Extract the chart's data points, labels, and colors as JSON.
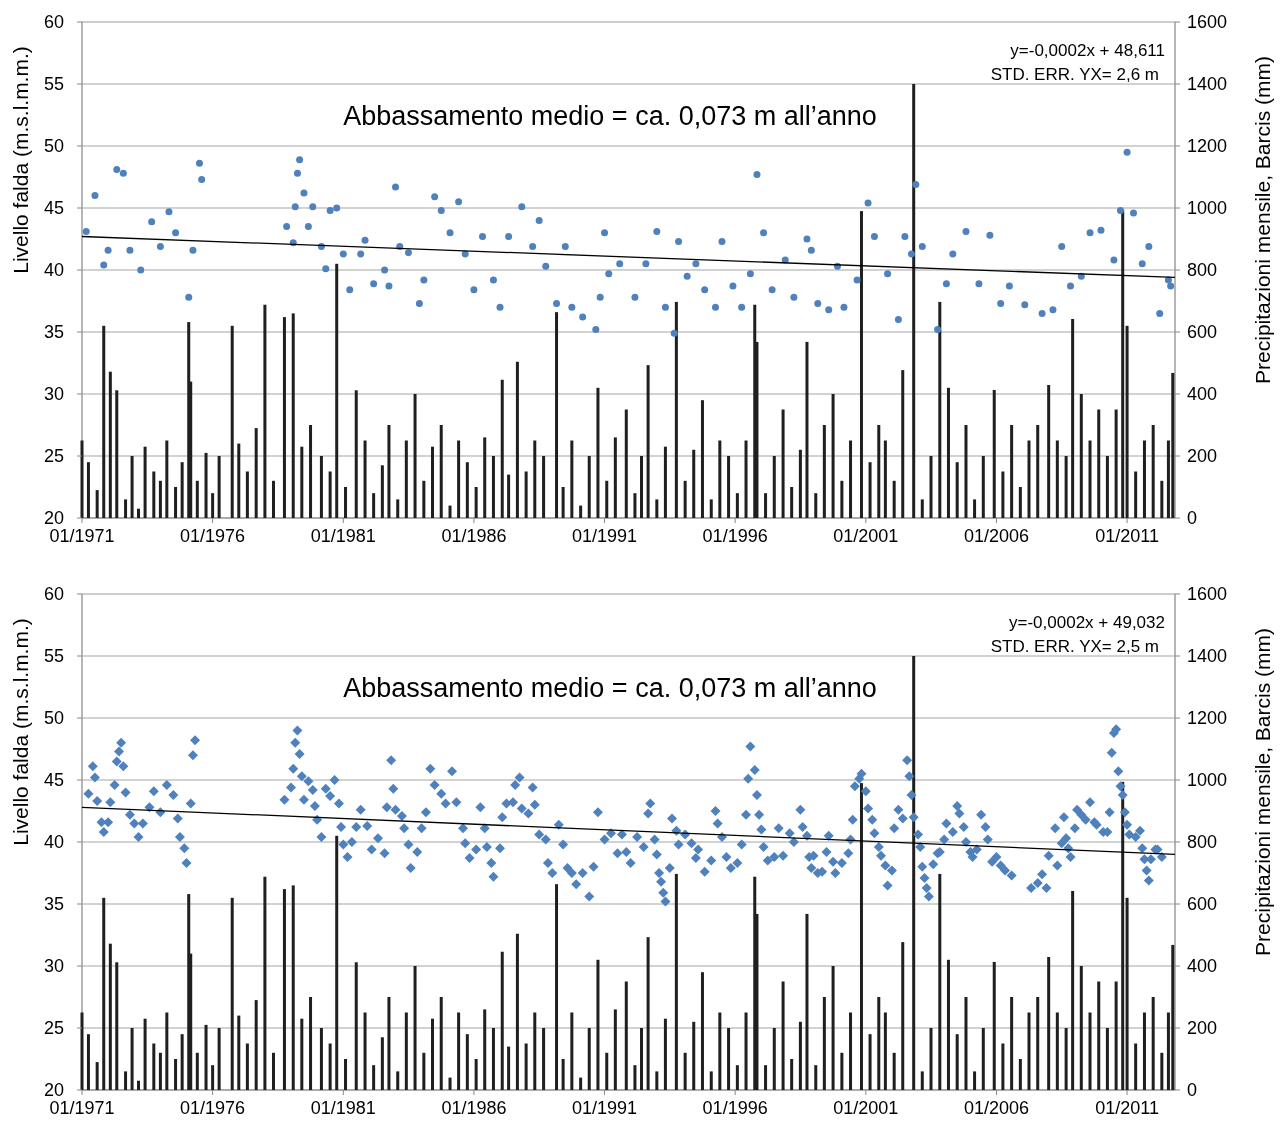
{
  "chart_data": [
    {
      "type": "scatter",
      "ylabel": "Livello falda (m.s.l.m.m.)",
      "y2label": "Precipitazioni mensile, Barcis (mm)",
      "annotations": [
        "y=-0,0002x + 48,611",
        "STD. ERR. YX= 2,6 m",
        "Abbassamento medio = ca. 0,073 m all’anno"
      ],
      "xlim": [
        "1971-01",
        "2012-11"
      ],
      "xticks": [
        {
          "value": "1971-01",
          "label": "01/1971"
        },
        {
          "value": "1976-01",
          "label": "01/1976"
        },
        {
          "value": "1981-01",
          "label": "01/1981"
        },
        {
          "value": "1986-01",
          "label": "01/1986"
        },
        {
          "value": "1991-01",
          "label": "01/1991"
        },
        {
          "value": "1996-01",
          "label": "01/1996"
        },
        {
          "value": "2001-01",
          "label": "01/2001"
        },
        {
          "value": "2006-01",
          "label": "01/2006"
        },
        {
          "value": "2011-01",
          "label": "01/2011"
        }
      ],
      "ylim": [
        20,
        60
      ],
      "yticks": [
        20,
        25,
        30,
        35,
        40,
        45,
        50,
        55,
        60
      ],
      "y2lim": [
        0,
        1600
      ],
      "y2ticks": [
        0,
        200,
        400,
        600,
        800,
        1000,
        1200,
        1400,
        1600
      ],
      "grid": "y",
      "series": [
        {
          "type": "bar",
          "axis": "y2",
          "color": "#1f1f1f",
          "x": [
            "1971-01",
            "1971-04",
            "1971-08",
            "1971-11",
            "1972-02",
            "1972-05",
            "1972-09",
            "1972-12",
            "1973-03",
            "1973-06",
            "1973-10",
            "1974-01",
            "1974-04",
            "1974-08",
            "1974-11",
            "1975-02",
            "1975-03",
            "1975-06",
            "1975-10",
            "1976-01",
            "1976-04",
            "1976-10",
            "1977-01",
            "1977-05",
            "1977-09",
            "1978-01",
            "1978-05",
            "1978-10",
            "1979-02",
            "1979-06",
            "1979-10",
            "1980-03",
            "1980-07",
            "1980-10",
            "1981-02",
            "1981-07",
            "1981-11",
            "1982-03",
            "1982-07",
            "1982-10",
            "1983-02",
            "1983-06",
            "1983-10",
            "1984-02",
            "1984-06",
            "1984-10",
            "1985-02",
            "1985-06",
            "1985-10",
            "1986-02",
            "1986-06",
            "1986-10",
            "1987-02",
            "1987-05",
            "1987-09",
            "1988-01",
            "1988-05",
            "1988-09",
            "1989-03",
            "1989-06",
            "1989-10",
            "1990-02",
            "1990-06",
            "1990-10",
            "1991-02",
            "1991-06",
            "1991-11",
            "1992-03",
            "1992-06",
            "1992-09",
            "1993-01",
            "1993-05",
            "1993-10",
            "1994-02",
            "1994-06",
            "1994-10",
            "1995-02",
            "1995-06",
            "1995-10",
            "1996-02",
            "1996-06",
            "1996-10",
            "1996-11",
            "1997-03",
            "1997-07",
            "1997-11",
            "1998-03",
            "1998-07",
            "1998-10",
            "1999-02",
            "1999-06",
            "1999-10",
            "2000-02",
            "2000-06",
            "2000-11",
            "2001-03",
            "2001-07",
            "2001-10",
            "2002-02",
            "2002-06",
            "2002-11",
            "2003-03",
            "2003-07",
            "2003-11",
            "2004-03",
            "2004-07",
            "2004-11",
            "2005-03",
            "2005-07",
            "2005-12",
            "2006-04",
            "2006-08",
            "2006-12",
            "2007-04",
            "2007-08",
            "2008-01",
            "2008-05",
            "2008-09",
            "2008-12",
            "2009-04",
            "2009-08",
            "2009-12",
            "2010-04",
            "2010-08",
            "2010-11",
            "2011-01",
            "2011-05",
            "2011-09",
            "2012-01",
            "2012-05",
            "2012-08",
            "2012-10"
          ],
          "values": [
            250,
            180,
            90,
            620,
            472,
            412,
            60,
            200,
            30,
            230,
            150,
            120,
            250,
            100,
            180,
            632,
            440,
            120,
            210,
            80,
            200,
            620,
            240,
            150,
            290,
            688,
            120,
            648,
            660,
            230,
            300,
            200,
            150,
            820,
            100,
            412,
            250,
            80,
            170,
            300,
            60,
            250,
            400,
            120,
            230,
            300,
            40,
            250,
            180,
            100,
            260,
            200,
            446,
            140,
            504,
            150,
            250,
            200,
            664,
            100,
            250,
            40,
            200,
            420,
            120,
            260,
            350,
            80,
            200,
            493,
            60,
            230,
            697,
            120,
            220,
            380,
            60,
            250,
            200,
            80,
            250,
            688,
            568,
            80,
            200,
            350,
            100,
            220,
            568,
            80,
            300,
            400,
            120,
            250,
            990,
            180,
            300,
            250,
            120,
            477,
            1400,
            60,
            200,
            697,
            420,
            180,
            300,
            60,
            200,
            413,
            150,
            300,
            100,
            250,
            300,
            429,
            250,
            200,
            642,
            400,
            250,
            350,
            200,
            350,
            994,
            620,
            150,
            250,
            300,
            120,
            250,
            468
          ]
        },
        {
          "marker": "circle",
          "color": "#4f81bd",
          "x": [
            "1971-03",
            "1971-07",
            "1971-11",
            "1972-01",
            "1972-05",
            "1972-08",
            "1972-11",
            "1973-04",
            "1973-09",
            "1974-01",
            "1974-05",
            "1974-08",
            "1975-02",
            "1975-04",
            "1975-07",
            "1975-08",
            "1978-11",
            "1979-02",
            "1979-03",
            "1979-04",
            "1979-05",
            "1979-07",
            "1979-09",
            "1979-11",
            "1980-03",
            "1980-05",
            "1980-07",
            "1980-10",
            "1981-01",
            "1981-04",
            "1981-09",
            "1981-11",
            "1982-03",
            "1982-08",
            "1982-10",
            "1983-01",
            "1983-03",
            "1983-07",
            "1983-12",
            "1984-02",
            "1984-07",
            "1984-10",
            "1985-02",
            "1985-06",
            "1985-09",
            "1986-01",
            "1986-05",
            "1986-10",
            "1987-01",
            "1987-05",
            "1987-11",
            "1988-04",
            "1988-07",
            "1988-10",
            "1989-03",
            "1989-07",
            "1989-10",
            "1990-03",
            "1990-09",
            "1990-11",
            "1991-01",
            "1991-03",
            "1991-08",
            "1992-03",
            "1992-08",
            "1993-01",
            "1993-05",
            "1993-09",
            "1993-11",
            "1994-03",
            "1994-07",
            "1994-11",
            "1995-04",
            "1995-07",
            "1995-12",
            "1996-04",
            "1996-08",
            "1996-11",
            "1997-02",
            "1997-06",
            "1997-12",
            "1998-04",
            "1998-10",
            "1998-12",
            "1999-03",
            "1999-08",
            "1999-12",
            "2000-03",
            "2000-09",
            "2001-02",
            "2001-05",
            "2001-11",
            "2002-04",
            "2002-07",
            "2002-10",
            "2002-12",
            "2003-03",
            "2003-10",
            "2004-02",
            "2004-05",
            "2004-11",
            "2005-05",
            "2005-10",
            "2006-03",
            "2006-07",
            "2007-02",
            "2007-10",
            "2008-03",
            "2008-07",
            "2008-11",
            "2009-04",
            "2009-08",
            "2010-01",
            "2010-07",
            "2010-10",
            "2011-01",
            "2011-04",
            "2011-08",
            "2011-11",
            "2012-04",
            "2012-08",
            "2012-09"
          ],
          "values": [
            43.1,
            46.0,
            40.4,
            41.6,
            48.1,
            47.8,
            41.6,
            40.0,
            43.9,
            41.9,
            44.7,
            43.0,
            37.8,
            41.6,
            48.6,
            47.3,
            43.5,
            42.2,
            45.1,
            47.8,
            48.9,
            46.2,
            43.5,
            45.1,
            41.9,
            40.1,
            44.8,
            45.0,
            41.3,
            38.4,
            41.3,
            42.4,
            38.9,
            40.0,
            38.7,
            46.7,
            41.9,
            41.4,
            37.3,
            39.2,
            45.9,
            44.8,
            43.0,
            45.5,
            41.3,
            38.4,
            42.7,
            39.2,
            37.0,
            42.7,
            45.1,
            41.9,
            44.0,
            40.3,
            37.3,
            41.9,
            37.0,
            36.2,
            35.2,
            37.8,
            43.0,
            39.7,
            40.5,
            37.8,
            40.5,
            43.1,
            37.0,
            34.9,
            42.3,
            39.5,
            40.5,
            38.4,
            37.0,
            42.3,
            38.7,
            37.0,
            39.7,
            47.7,
            43.0,
            38.4,
            40.8,
            37.8,
            42.5,
            41.6,
            37.3,
            36.8,
            40.3,
            37.0,
            39.2,
            45.4,
            42.7,
            39.7,
            36.0,
            42.7,
            41.3,
            46.9,
            41.9,
            35.2,
            38.9,
            41.3,
            43.1,
            38.9,
            42.8,
            37.3,
            38.7,
            37.2,
            36.5,
            36.8,
            41.9,
            38.7,
            39.5,
            43.0,
            43.2,
            40.8,
            44.8,
            49.5,
            44.6,
            40.5,
            41.9,
            36.5,
            39.2,
            38.7
          ]
        },
        {
          "type": "line",
          "line_style": "solid",
          "color": "#000000",
          "x": [
            "1971-01",
            "2012-11"
          ],
          "values": [
            42.7,
            39.4
          ]
        }
      ]
    },
    {
      "type": "scatter",
      "ylabel": "Livello falda (m.s.l.m.m.)",
      "y2label": "Precipitazioni mensile, Barcis (mm)",
      "annotations": [
        "y=-0,0002x + 49,032",
        "STD. ERR. YX= 2,5 m",
        "Abbassamento medio = ca. 0,073 m all’anno"
      ],
      "xlim": [
        "1971-01",
        "2012-11"
      ],
      "xticks": [
        {
          "value": "1971-01",
          "label": "01/1971"
        },
        {
          "value": "1976-01",
          "label": "01/1976"
        },
        {
          "value": "1981-01",
          "label": "01/1981"
        },
        {
          "value": "1986-01",
          "label": "01/1986"
        },
        {
          "value": "1991-01",
          "label": "01/1991"
        },
        {
          "value": "1996-01",
          "label": "01/1996"
        },
        {
          "value": "2001-01",
          "label": "01/2001"
        },
        {
          "value": "2006-01",
          "label": "01/2006"
        },
        {
          "value": "2011-01",
          "label": "01/2011"
        }
      ],
      "ylim": [
        20,
        60
      ],
      "yticks": [
        20,
        25,
        30,
        35,
        40,
        45,
        50,
        55,
        60
      ],
      "y2lim": [
        0,
        1600
      ],
      "y2ticks": [
        0,
        200,
        400,
        600,
        800,
        1000,
        1200,
        1400,
        1600
      ],
      "grid": "y",
      "series": [
        {
          "type": "bar",
          "axis": "y2",
          "color": "#1f1f1f",
          "x": [
            "1971-01",
            "1971-04",
            "1971-08",
            "1971-11",
            "1972-02",
            "1972-05",
            "1972-09",
            "1972-12",
            "1973-03",
            "1973-06",
            "1973-10",
            "1974-01",
            "1974-04",
            "1974-08",
            "1974-11",
            "1975-02",
            "1975-03",
            "1975-06",
            "1975-10",
            "1976-01",
            "1976-04",
            "1976-10",
            "1977-01",
            "1977-05",
            "1977-09",
            "1978-01",
            "1978-05",
            "1978-10",
            "1979-02",
            "1979-06",
            "1979-10",
            "1980-03",
            "1980-07",
            "1980-10",
            "1981-02",
            "1981-07",
            "1981-11",
            "1982-03",
            "1982-07",
            "1982-10",
            "1983-02",
            "1983-06",
            "1983-10",
            "1984-02",
            "1984-06",
            "1984-10",
            "1985-02",
            "1985-06",
            "1985-10",
            "1986-02",
            "1986-06",
            "1986-10",
            "1987-02",
            "1987-05",
            "1987-09",
            "1988-01",
            "1988-05",
            "1988-09",
            "1989-03",
            "1989-06",
            "1989-10",
            "1990-02",
            "1990-06",
            "1990-10",
            "1991-02",
            "1991-06",
            "1991-11",
            "1992-03",
            "1992-06",
            "1992-09",
            "1993-01",
            "1993-05",
            "1993-10",
            "1994-02",
            "1994-06",
            "1994-10",
            "1995-02",
            "1995-06",
            "1995-10",
            "1996-02",
            "1996-06",
            "1996-10",
            "1996-11",
            "1997-03",
            "1997-07",
            "1997-11",
            "1998-03",
            "1998-07",
            "1998-10",
            "1999-02",
            "1999-06",
            "1999-10",
            "2000-02",
            "2000-06",
            "2000-11",
            "2001-03",
            "2001-07",
            "2001-10",
            "2002-02",
            "2002-06",
            "2002-11",
            "2003-03",
            "2003-07",
            "2003-11",
            "2004-03",
            "2004-07",
            "2004-11",
            "2005-03",
            "2005-07",
            "2005-12",
            "2006-04",
            "2006-08",
            "2006-12",
            "2007-04",
            "2007-08",
            "2008-01",
            "2008-05",
            "2008-09",
            "2008-12",
            "2009-04",
            "2009-08",
            "2009-12",
            "2010-04",
            "2010-08",
            "2010-11",
            "2011-01",
            "2011-05",
            "2011-09",
            "2012-01",
            "2012-05",
            "2012-08",
            "2012-10"
          ],
          "values": [
            250,
            180,
            90,
            620,
            472,
            412,
            60,
            200,
            30,
            230,
            150,
            120,
            250,
            100,
            180,
            632,
            440,
            120,
            210,
            80,
            200,
            620,
            240,
            150,
            290,
            688,
            120,
            648,
            660,
            230,
            300,
            200,
            150,
            820,
            100,
            412,
            250,
            80,
            170,
            300,
            60,
            250,
            400,
            120,
            230,
            300,
            40,
            250,
            180,
            100,
            260,
            200,
            446,
            140,
            504,
            150,
            250,
            200,
            664,
            100,
            250,
            40,
            200,
            420,
            120,
            260,
            350,
            80,
            200,
            493,
            60,
            230,
            697,
            120,
            220,
            380,
            60,
            250,
            200,
            80,
            250,
            688,
            568,
            80,
            200,
            350,
            100,
            220,
            568,
            80,
            300,
            400,
            120,
            250,
            990,
            180,
            300,
            250,
            120,
            477,
            1400,
            60,
            200,
            697,
            420,
            180,
            300,
            60,
            200,
            413,
            150,
            300,
            100,
            250,
            300,
            429,
            250,
            200,
            642,
            400,
            250,
            350,
            200,
            350,
            994,
            620,
            150,
            250,
            300,
            120,
            250,
            468
          ]
        },
        {
          "marker": "diamond",
          "color": "#4f81bd",
          "x": [
            "1971-04",
            "1971-06",
            "1971-07",
            "1971-08",
            "1971-10",
            "1971-11",
            "1972-01",
            "1972-02",
            "1972-04",
            "1972-05",
            "1972-06",
            "1972-07",
            "1972-08",
            "1972-09",
            "1972-11",
            "1973-01",
            "1973-03",
            "1973-05",
            "1973-08",
            "1973-10",
            "1974-01",
            "1974-04",
            "1974-07",
            "1974-09",
            "1974-10",
            "1974-12",
            "1975-01",
            "1975-03",
            "1975-04",
            "1975-05",
            "1978-10",
            "1979-01",
            "1979-02",
            "1979-03",
            "1979-04",
            "1979-05",
            "1979-06",
            "1979-07",
            "1979-09",
            "1979-11",
            "1979-12",
            "1980-01",
            "1980-03",
            "1980-05",
            "1980-07",
            "1980-09",
            "1980-11",
            "1980-12",
            "1981-01",
            "1981-03",
            "1981-05",
            "1981-07",
            "1981-09",
            "1981-12",
            "1982-02",
            "1982-05",
            "1982-08",
            "1982-09",
            "1982-11",
            "1982-12",
            "1983-01",
            "1983-04",
            "1983-05",
            "1983-07",
            "1983-08",
            "1983-11",
            "1984-01",
            "1984-03",
            "1984-05",
            "1984-07",
            "1984-10",
            "1984-12",
            "1985-03",
            "1985-05",
            "1985-08",
            "1985-09",
            "1985-11",
            "1986-02",
            "1986-04",
            "1986-06",
            "1986-07",
            "1986-09",
            "1986-10",
            "1987-01",
            "1987-02",
            "1987-04",
            "1987-07",
            "1987-08",
            "1987-10",
            "1987-11",
            "1988-02",
            "1988-04",
            "1988-05",
            "1988-07",
            "1988-10",
            "1988-11",
            "1989-01",
            "1989-04",
            "1989-06",
            "1989-08",
            "1989-10",
            "1989-12",
            "1990-03",
            "1990-06",
            "1990-08",
            "1990-10",
            "1991-01",
            "1991-04",
            "1991-07",
            "1991-09",
            "1991-11",
            "1992-01",
            "1992-04",
            "1992-07",
            "1992-09",
            "1992-10",
            "1992-12",
            "1993-01",
            "1993-02",
            "1993-03",
            "1993-04",
            "1993-05",
            "1993-07",
            "1993-08",
            "1993-10",
            "1993-11",
            "1994-02",
            "1994-05",
            "1994-07",
            "1994-08",
            "1994-11",
            "1995-02",
            "1995-04",
            "1995-05",
            "1995-07",
            "1995-09",
            "1995-11",
            "1996-02",
            "1996-04",
            "1996-06",
            "1996-07",
            "1996-08",
            "1996-10",
            "1996-11",
            "1996-12",
            "1997-01",
            "1997-02",
            "1997-04",
            "1997-07",
            "1997-09",
            "1997-11",
            "1998-02",
            "1998-04",
            "1998-07",
            "1998-08",
            "1998-10",
            "1998-11",
            "1998-12",
            "1999-01",
            "1999-03",
            "1999-05",
            "1999-07",
            "1999-08",
            "1999-10",
            "1999-11",
            "2000-02",
            "2000-05",
            "2000-06",
            "2000-07",
            "2000-08",
            "2000-10",
            "2000-11",
            "2001-01",
            "2001-02",
            "2001-04",
            "2001-05",
            "2001-07",
            "2001-08",
            "2001-10",
            "2001-11",
            "2002-01",
            "2002-02",
            "2002-04",
            "2002-06",
            "2002-08",
            "2002-09",
            "2002-10",
            "2002-11",
            "2003-01",
            "2003-02",
            "2003-03",
            "2003-04",
            "2003-05",
            "2003-06",
            "2003-08",
            "2003-10",
            "2003-11",
            "2004-01",
            "2004-02",
            "2004-05",
            "2004-07",
            "2004-08",
            "2004-10",
            "2004-11",
            "2005-01",
            "2005-02",
            "2005-04",
            "2005-06",
            "2005-08",
            "2005-09",
            "2005-11",
            "2006-01",
            "2006-03",
            "2006-05",
            "2006-08",
            "2007-05",
            "2007-08",
            "2007-10",
            "2007-12",
            "2008-01",
            "2008-04",
            "2008-05",
            "2008-07",
            "2008-08",
            "2008-09",
            "2008-10",
            "2008-11",
            "2009-01",
            "2009-02",
            "2009-04",
            "2009-06",
            "2009-08",
            "2009-10",
            "2009-11",
            "2010-02",
            "2010-04",
            "2010-05",
            "2010-06",
            "2010-07",
            "2010-08",
            "2010-09",
            "2010-10",
            "2010-11",
            "2010-12",
            "2011-01",
            "2011-02",
            "2011-05",
            "2011-07",
            "2011-08",
            "2011-09",
            "2011-10",
            "2011-11",
            "2011-12",
            "2012-02",
            "2012-03",
            "2012-05"
          ],
          "values": [
            43.9,
            46.1,
            45.2,
            43.3,
            41.6,
            40.8,
            41.6,
            43.2,
            44.6,
            46.5,
            47.3,
            48.0,
            46.1,
            44.0,
            42.2,
            41.5,
            40.4,
            41.5,
            42.8,
            44.1,
            42.4,
            44.6,
            43.8,
            41.9,
            40.4,
            39.5,
            38.3,
            43.1,
            47.0,
            48.2,
            43.4,
            44.4,
            45.9,
            48.0,
            49.0,
            47.1,
            45.3,
            43.4,
            44.9,
            44.2,
            42.9,
            41.8,
            40.4,
            44.3,
            43.7,
            45.0,
            43.1,
            41.2,
            39.8,
            38.8,
            40.0,
            41.2,
            42.6,
            41.3,
            39.4,
            40.3,
            39.1,
            42.8,
            46.6,
            44.3,
            42.6,
            42.1,
            41.1,
            39.8,
            37.9,
            39.2,
            41.1,
            42.4,
            45.9,
            44.6,
            43.9,
            43.1,
            45.7,
            43.2,
            41.1,
            39.9,
            38.7,
            39.4,
            42.8,
            41.1,
            39.6,
            38.3,
            37.2,
            39.5,
            42.0,
            43.1,
            43.2,
            44.6,
            45.2,
            42.7,
            42.3,
            44.4,
            43.0,
            40.6,
            40.2,
            38.3,
            37.5,
            41.4,
            39.8,
            37.9,
            37.5,
            36.6,
            37.5,
            35.6,
            38.0,
            42.4,
            40.2,
            40.7,
            39.1,
            40.6,
            39.2,
            38.3,
            40.4,
            39.6,
            42.3,
            43.1,
            40.2,
            39.0,
            37.5,
            36.8,
            35.9,
            35.2,
            37.9,
            41.9,
            40.9,
            39.8,
            40.6,
            39.9,
            38.7,
            39.4,
            37.6,
            38.5,
            42.5,
            41.5,
            40.4,
            38.8,
            37.9,
            38.3,
            39.8,
            42.2,
            45.1,
            47.7,
            45.8,
            43.8,
            42.2,
            41.0,
            39.6,
            38.5,
            38.8,
            41.1,
            38.9,
            40.7,
            40.0,
            42.6,
            41.2,
            40.5,
            38.8,
            37.9,
            38.9,
            37.5,
            37.6,
            39.2,
            40.5,
            38.4,
            37.5,
            38.3,
            39.1,
            40.2,
            41.8,
            44.5,
            45.1,
            45.5,
            44.1,
            42.7,
            41.8,
            40.7,
            39.6,
            38.9,
            38.1,
            36.5,
            37.7,
            41.1,
            42.6,
            41.9,
            46.6,
            45.3,
            43.8,
            42.0,
            40.6,
            39.6,
            38.0,
            37.1,
            36.3,
            35.6,
            38.2,
            39.1,
            39.2,
            40.2,
            41.5,
            40.8,
            42.9,
            42.3,
            41.2,
            40.0,
            39.2,
            38.8,
            39.4,
            42.2,
            41.2,
            40.2,
            38.4,
            38.8,
            38.1,
            37.7,
            37.3,
            36.3,
            36.7,
            37.4,
            36.3,
            38.9,
            41.1,
            38.1,
            39.9,
            42.0,
            40.3,
            39.5,
            38.8,
            41.1,
            42.6,
            42.2,
            41.8,
            43.2,
            41.6,
            41.4,
            40.8,
            40.8,
            42.4,
            47.2,
            48.8,
            49.1,
            45.7,
            44.5,
            43.8,
            42.4,
            41.4,
            40.6,
            40.4,
            40.9,
            39.5,
            38.6,
            37.7,
            36.9,
            38.6,
            39.4,
            39.4,
            38.8
          ]
        },
        {
          "type": "line",
          "line_style": "solid",
          "color": "#000000",
          "x": [
            "1971-01",
            "2012-11"
          ],
          "values": [
            42.8,
            39.0
          ]
        }
      ]
    }
  ]
}
